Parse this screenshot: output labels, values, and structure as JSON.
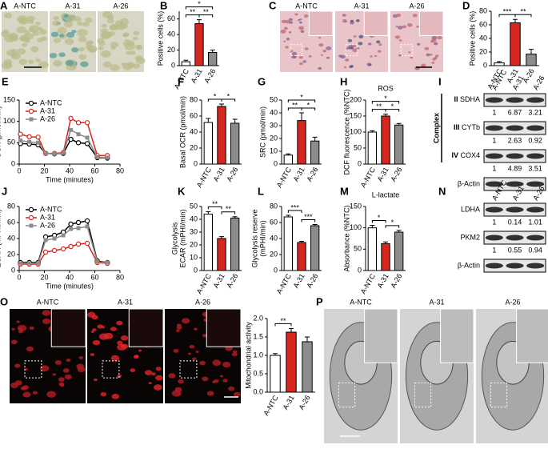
{
  "image_panels": [
    {
      "letter": "A",
      "labels": [
        "A-NTC",
        "A-31",
        "A-26"
      ]
    },
    {
      "letter": "C",
      "labels": [
        "A-NTC",
        "A-31",
        "A-26"
      ]
    },
    {
      "letter": "O",
      "labels": [
        "A-NTC",
        "A-31",
        "A-26"
      ]
    },
    {
      "letter": "P",
      "labels": [
        "A-NTC",
        "A-31",
        "A-26"
      ]
    }
  ],
  "blots": [
    {
      "letter": "I",
      "group_label": "Complex",
      "lanes": [
        "A-NTC",
        "A-31",
        "A-26"
      ],
      "rows": [
        {
          "complex": "II",
          "label": "SDHA",
          "values": [
            1,
            6.87,
            3.21
          ]
        },
        {
          "complex": "III",
          "label": "CYTb",
          "values": [
            1,
            2.63,
            0.92
          ]
        },
        {
          "complex": "IV",
          "label": "COX4",
          "values": [
            1,
            4.89,
            3.51
          ]
        },
        {
          "label": "β-Actin"
        }
      ]
    },
    {
      "letter": "N",
      "lanes": [
        "A-NTC",
        "A-31",
        "A-26"
      ],
      "rows": [
        {
          "label": "LDHA",
          "values": [
            1,
            0.14,
            1.01
          ]
        },
        {
          "label": "PKM2",
          "values": [
            1,
            0.55,
            0.94
          ]
        },
        {
          "label": "β-Actin"
        }
      ]
    }
  ],
  "chart_data": [
    {
      "type": "bar",
      "letter": "B",
      "ylabel": [
        "Positive cells (%)"
      ],
      "categories": [
        "A-NTC",
        "A-31",
        "A-26"
      ],
      "values": [
        5,
        54,
        17
      ],
      "errors": [
        2,
        5,
        3
      ],
      "colors": [
        "#ffffff",
        "#d7261e",
        "#8c8c8c"
      ],
      "ylim": [
        0,
        70
      ],
      "yticks": [
        0,
        20,
        40,
        60
      ],
      "annotations": [
        {
          "text": "*",
          "from": 0,
          "to": 2
        },
        {
          "text": "**",
          "from": 0,
          "to": 1
        },
        {
          "text": "**",
          "from": 1,
          "to": 2
        }
      ]
    },
    {
      "type": "bar",
      "letter": "D",
      "ylabel": [
        "Positive cells (%)"
      ],
      "categories": [
        "A-NTC",
        "A-31",
        "A-26"
      ],
      "values": [
        4,
        63,
        17
      ],
      "errors": [
        2,
        5,
        7
      ],
      "colors": [
        "#ffffff",
        "#d7261e",
        "#8c8c8c"
      ],
      "ylim": [
        0,
        80
      ],
      "yticks": [
        0,
        20,
        40,
        60,
        80
      ],
      "annotations": [
        {
          "text": "***",
          "from": 0,
          "to": 1
        },
        {
          "text": "**",
          "from": 1,
          "to": 2
        }
      ]
    },
    {
      "type": "line",
      "letter": "E",
      "ylabel": [
        "OCR (pmol/min)"
      ],
      "xlabel": "Time (minutes)",
      "x": [
        1,
        8,
        15,
        21,
        28,
        35,
        41,
        47,
        54,
        62,
        70
      ],
      "xlim": [
        0,
        80
      ],
      "xticks": [
        0,
        20,
        40,
        60,
        80
      ],
      "ylim": [
        0,
        150
      ],
      "yticks": [
        0,
        50,
        100,
        150
      ],
      "series": [
        {
          "name": "A-NTC",
          "color": "#000000",
          "marker": "open-circle",
          "values": [
            48,
            47,
            45,
            25,
            24,
            25,
            58,
            50,
            48,
            15,
            14
          ]
        },
        {
          "name": "A-31",
          "color": "#d7261e",
          "marker": "open-circle",
          "values": [
            70,
            64,
            63,
            25,
            25,
            27,
            107,
            97,
            97,
            20,
            20
          ]
        },
        {
          "name": "A-26",
          "color": "#8c8c8c",
          "marker": "square",
          "values": [
            55,
            52,
            50,
            25,
            24,
            26,
            80,
            70,
            62,
            16,
            15
          ]
        }
      ]
    },
    {
      "type": "bar",
      "letter": "F",
      "ylabel": [
        "Basal OCR (pmol/min)"
      ],
      "categories": [
        "A-NTC",
        "A-31",
        "A-26"
      ],
      "values": [
        52,
        72,
        51
      ],
      "errors": [
        5,
        3,
        5
      ],
      "colors": [
        "#ffffff",
        "#d7261e",
        "#8c8c8c"
      ],
      "ylim": [
        0,
        80
      ],
      "yticks": [
        0,
        20,
        40,
        60,
        80
      ],
      "annotations": [
        {
          "text": "*",
          "from": 0,
          "to": 1
        },
        {
          "text": "*",
          "from": 1,
          "to": 2
        }
      ]
    },
    {
      "type": "bar",
      "letter": "G",
      "ylabel": [
        "SRC (pmol/min)"
      ],
      "categories": [
        "A-NTC",
        "A-31",
        "A-26"
      ],
      "values": [
        7,
        34,
        18
      ],
      "errors": [
        1,
        6,
        3
      ],
      "colors": [
        "#ffffff",
        "#d7261e",
        "#8c8c8c"
      ],
      "ylim": [
        0,
        50
      ],
      "yticks": [
        0,
        10,
        20,
        30,
        40,
        50
      ],
      "annotations": [
        {
          "text": "*",
          "from": 0,
          "to": 2
        },
        {
          "text": "**",
          "from": 0,
          "to": 1
        },
        {
          "text": "*",
          "from": 1,
          "to": 2
        }
      ]
    },
    {
      "type": "bar",
      "letter": "H",
      "title": "ROS",
      "ylabel": [
        "DCF fluorescence (%NTC)"
      ],
      "categories": [
        "A-NTC",
        "A-31",
        "A-26"
      ],
      "values": [
        100,
        150,
        122
      ],
      "errors": [
        4,
        6,
        5
      ],
      "colors": [
        "#ffffff",
        "#d7261e",
        "#8c8c8c"
      ],
      "ylim": [
        0,
        200
      ],
      "yticks": [
        0,
        50,
        100,
        150,
        200
      ],
      "annotations": [
        {
          "text": "*",
          "from": 0,
          "to": 2
        },
        {
          "text": "**",
          "from": 0,
          "to": 1
        },
        {
          "text": "*",
          "from": 1,
          "to": 2
        }
      ]
    },
    {
      "type": "line",
      "letter": "J",
      "ylabel": [
        "ECAR (mPHI/min)"
      ],
      "xlabel": "Time (minutes)",
      "x": [
        1,
        8,
        15,
        21,
        28,
        35,
        41,
        47,
        54,
        62,
        70
      ],
      "xlim": [
        0,
        80
      ],
      "xticks": [
        0,
        20,
        40,
        60,
        80
      ],
      "ylim": [
        0,
        80
      ],
      "yticks": [
        0,
        20,
        40,
        60,
        80
      ],
      "series": [
        {
          "name": "A-NTC",
          "color": "#000000",
          "marker": "open-circle",
          "values": [
            10,
            10,
            10,
            42,
            44,
            48,
            58,
            60,
            62,
            12,
            10
          ]
        },
        {
          "name": "A-31",
          "color": "#d7261e",
          "marker": "open-circle",
          "values": [
            8,
            8,
            8,
            23,
            25,
            27,
            30,
            33,
            34,
            10,
            9
          ]
        },
        {
          "name": "A-26",
          "color": "#8c8c8c",
          "marker": "square",
          "values": [
            9,
            9,
            9,
            38,
            40,
            44,
            52,
            53,
            55,
            11,
            10
          ]
        }
      ]
    },
    {
      "type": "bar",
      "letter": "K",
      "ylabel": [
        "Glycolysis",
        "ECAR (mPHI/min)"
      ],
      "categories": [
        "A-NTC",
        "A-31",
        "A-26"
      ],
      "values": [
        44,
        25,
        41
      ],
      "errors": [
        2,
        1.5,
        1
      ],
      "colors": [
        "#ffffff",
        "#d7261e",
        "#8c8c8c"
      ],
      "ylim": [
        0,
        50
      ],
      "yticks": [
        0,
        10,
        20,
        30,
        40,
        50
      ],
      "annotations": [
        {
          "text": "**",
          "from": 0,
          "to": 1
        },
        {
          "text": "**",
          "from": 1,
          "to": 2
        }
      ]
    },
    {
      "type": "bar",
      "letter": "L",
      "ylabel": [
        "Glycolysis reserve",
        "(mPHI/min)"
      ],
      "categories": [
        "A-NTC",
        "A-31",
        "A-26"
      ],
      "values": [
        67,
        35,
        56
      ],
      "errors": [
        2,
        1.5,
        1.5
      ],
      "colors": [
        "#ffffff",
        "#d7261e",
        "#8c8c8c"
      ],
      "ylim": [
        0,
        80
      ],
      "yticks": [
        0,
        20,
        40,
        60,
        80
      ],
      "annotations": [
        {
          "text": "***",
          "from": 0,
          "to": 1
        },
        {
          "text": "***",
          "from": 1,
          "to": 2
        }
      ]
    },
    {
      "type": "bar",
      "letter": "M",
      "title": "L-lactate",
      "ylabel": [
        "Absorbance (%NTC)"
      ],
      "categories": [
        "A-NTC",
        "A-31",
        "A-26"
      ],
      "values": [
        100,
        63,
        90
      ],
      "errors": [
        6,
        4,
        4
      ],
      "colors": [
        "#ffffff",
        "#d7261e",
        "#8c8c8c"
      ],
      "ylim": [
        0,
        150
      ],
      "yticks": [
        0,
        50,
        100,
        150
      ],
      "annotations": [
        {
          "text": "*",
          "from": 0,
          "to": 1
        },
        {
          "text": "*",
          "from": 1,
          "to": 2
        }
      ]
    },
    {
      "type": "bar",
      "ylabel": [
        "Mitochondrial activity"
      ],
      "categories": [
        "A-NTC",
        "A-31",
        "A-26"
      ],
      "values": [
        1.0,
        1.63,
        1.37
      ],
      "errors": [
        0.05,
        0.1,
        0.13
      ],
      "colors": [
        "#ffffff",
        "#d7261e",
        "#8c8c8c"
      ],
      "ylim": [
        0,
        2
      ],
      "yticks": [
        {
          "value": 0,
          "label": "0.0"
        },
        {
          "value": 0.5,
          "label": "0.5"
        },
        {
          "value": 1,
          "label": "1.0"
        },
        {
          "value": 1.5,
          "label": "1.5"
        },
        {
          "value": 2,
          "label": "2.0"
        }
      ],
      "annotations": [
        {
          "text": "**",
          "from": 0,
          "to": 1
        }
      ]
    }
  ]
}
